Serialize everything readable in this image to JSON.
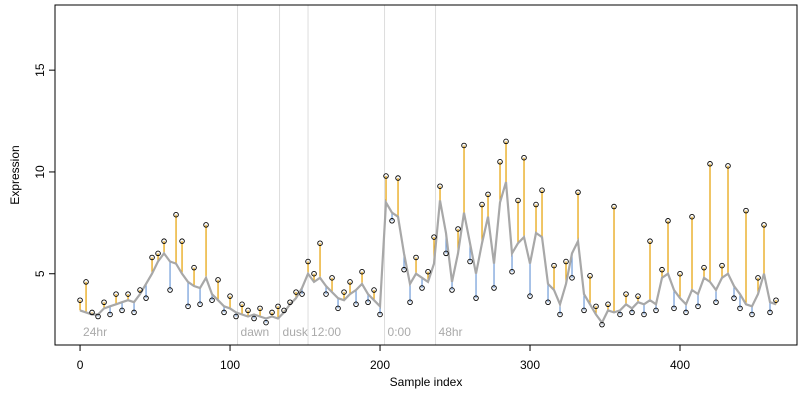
{
  "chart_data": {
    "type": "scatter",
    "x_label": "Sample index",
    "y_label": "Expression",
    "xlim": [
      -16.7,
      478
    ],
    "ylim": [
      1.5,
      18.2
    ],
    "xticks": [
      0,
      100,
      200,
      300,
      400
    ],
    "yticks": [
      5,
      10,
      15
    ],
    "x": [
      0,
      4,
      8,
      12,
      16,
      20,
      24,
      28,
      32,
      36,
      40,
      44,
      48,
      52,
      56,
      60,
      64,
      68,
      72,
      76,
      80,
      84,
      88,
      92,
      96,
      100,
      104,
      108,
      112,
      116,
      120,
      124,
      128,
      132,
      136,
      140,
      144,
      148,
      152,
      156,
      160,
      164,
      168,
      172,
      176,
      180,
      184,
      188,
      192,
      196,
      200,
      204,
      208,
      212,
      216,
      220,
      224,
      228,
      232,
      236,
      240,
      244,
      248,
      252,
      256,
      260,
      264,
      268,
      272,
      276,
      280,
      284,
      288,
      292,
      296,
      300,
      304,
      308,
      312,
      316,
      320,
      324,
      328,
      332,
      336,
      340,
      344,
      348,
      352,
      356,
      360,
      364,
      368,
      372,
      376,
      380,
      384,
      388,
      392,
      396,
      400,
      404,
      408,
      412,
      416,
      420,
      424,
      428,
      432,
      436,
      440,
      444,
      448,
      452,
      456,
      460,
      464
    ],
    "values": [
      3.7,
      4.6,
      3.1,
      2.9,
      3.6,
      3.0,
      4.0,
      3.2,
      4.0,
      3.1,
      4.2,
      3.8,
      5.8,
      6.0,
      6.6,
      4.2,
      7.9,
      6.6,
      3.4,
      5.3,
      3.5,
      7.4,
      3.7,
      4.7,
      3.1,
      3.9,
      2.9,
      3.5,
      3.2,
      2.8,
      3.3,
      2.6,
      3.1,
      3.4,
      3.2,
      3.6,
      4.1,
      4.0,
      5.6,
      5.0,
      6.5,
      4.0,
      4.8,
      3.3,
      4.1,
      4.6,
      3.5,
      5.1,
      3.6,
      4.2,
      3.0,
      9.8,
      7.6,
      9.7,
      5.2,
      3.6,
      5.8,
      4.3,
      5.1,
      6.8,
      9.3,
      6.0,
      4.2,
      7.2,
      11.3,
      5.6,
      3.8,
      8.4,
      8.9,
      4.3,
      10.5,
      11.5,
      5.1,
      8.6,
      10.7,
      3.9,
      8.4,
      9.1,
      3.6,
      5.4,
      3.0,
      5.6,
      4.8,
      9.0,
      3.2,
      4.9,
      3.4,
      2.5,
      3.5,
      8.3,
      3.0,
      4.0,
      3.1,
      3.9,
      3.0,
      6.6,
      3.2,
      5.2,
      7.6,
      3.3,
      5.0,
      3.1,
      7.8,
      3.4,
      5.3,
      10.4,
      3.6,
      5.4,
      10.3,
      3.8,
      3.3,
      8.1,
      3.0,
      4.8,
      7.4,
      3.1,
      3.7
    ],
    "fitted": [
      3.2,
      3.1,
      3.0,
      3.0,
      3.3,
      3.4,
      3.5,
      3.6,
      3.7,
      3.6,
      4.0,
      4.5,
      5.0,
      5.6,
      6.0,
      5.6,
      5.5,
      5.0,
      4.6,
      4.4,
      4.3,
      4.8,
      4.0,
      3.7,
      3.4,
      3.3,
      3.1,
      3.0,
      2.9,
      3.0,
      2.9,
      2.8,
      2.9,
      2.8,
      3.1,
      3.5,
      3.8,
      4.3,
      5.0,
      4.6,
      4.8,
      4.4,
      4.1,
      3.8,
      3.7,
      4.0,
      4.2,
      4.5,
      4.0,
      3.7,
      3.4,
      8.5,
      8.0,
      7.8,
      6.0,
      4.5,
      5.0,
      4.8,
      4.6,
      5.5,
      8.6,
      7.0,
      4.6,
      6.0,
      8.0,
      6.5,
      5.0,
      6.5,
      7.8,
      5.5,
      8.5,
      9.5,
      6.0,
      6.5,
      6.8,
      5.5,
      7.0,
      6.8,
      4.5,
      4.2,
      3.5,
      4.5,
      6.0,
      6.6,
      4.0,
      3.5,
      3.0,
      2.6,
      3.2,
      3.1,
      3.2,
      3.5,
      3.3,
      3.6,
      3.5,
      3.7,
      3.5,
      4.8,
      5.0,
      4.2,
      3.8,
      3.5,
      4.2,
      4.0,
      4.8,
      4.6,
      4.2,
      4.8,
      5.0,
      4.4,
      4.0,
      3.5,
      3.4,
      4.0,
      5.0,
      3.6,
      3.5
    ],
    "colors": {
      "above": "#e69f00",
      "below": "#6f9bd8",
      "fitted": "#a8a8a8",
      "points": "#000000",
      "vline": "#dddddd",
      "annotation": "#aaaaaa"
    },
    "vlines": [
      105,
      133,
      152,
      203,
      237
    ],
    "annotations": [
      {
        "text": "24hr",
        "x": 0
      },
      {
        "text": "dawn",
        "x": 105
      },
      {
        "text": "dusk",
        "x": 133
      },
      {
        "text": "12:00",
        "x": 152
      },
      {
        "text": "0:00",
        "x": 203
      },
      {
        "text": "48hr",
        "x": 237
      }
    ]
  }
}
